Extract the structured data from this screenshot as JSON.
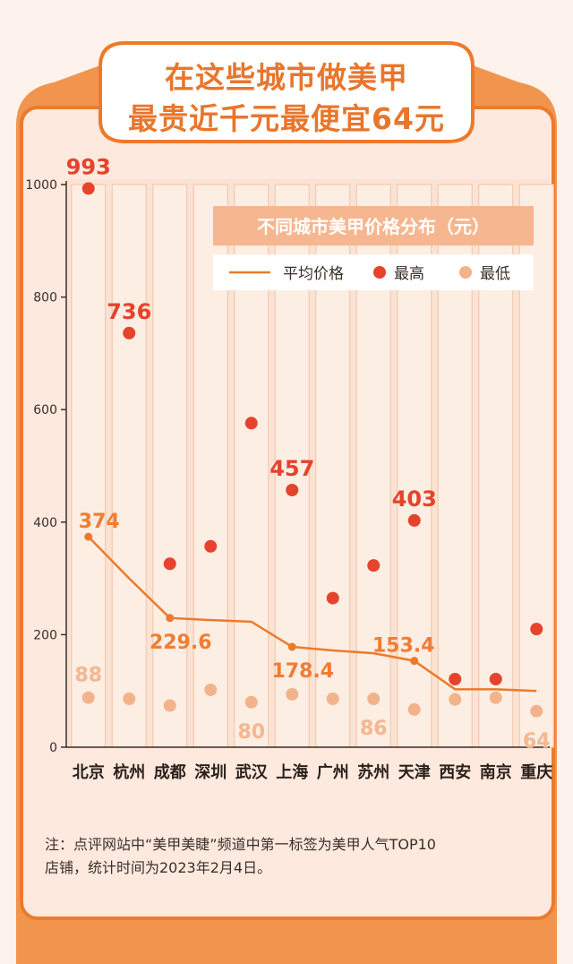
{
  "header": {
    "title_line1": "在这些城市做美甲",
    "title_line2": "最贵近千元最便宜64元"
  },
  "legend": {
    "title": "不同城市美甲价格分布（元）",
    "average": "平均价格",
    "max": "最高",
    "min": "最低"
  },
  "note": {
    "line1": "注：点评网站中“美甲美睫”频道中第一标签为美甲人气TOP10",
    "line2": "店铺，统计时间为2023年2月4日。"
  },
  "colors": {
    "accent": "#ec7a2b",
    "max_dot": "#e5432c",
    "min_dot": "#f2b38b",
    "panel_bg": "#fbe3d4",
    "column_bg": "#fdeee4",
    "label_orange": "#ef7d34",
    "label_light": "#f3b893"
  },
  "chart_data": {
    "type": "scatter",
    "title": "不同城市美甲价格分布（元）",
    "categories": [
      "北京",
      "杭州",
      "成都",
      "深圳",
      "武汉",
      "上海",
      "广州",
      "苏州",
      "天津",
      "西安",
      "南京",
      "重庆"
    ],
    "ylim": [
      0,
      1000
    ],
    "yticks": [
      0,
      200,
      400,
      600,
      800,
      1000
    ],
    "series": [
      {
        "name": "平均价格",
        "kind": "line",
        "values": [
          374,
          300,
          229.6,
          226,
          223,
          178.4,
          172,
          167,
          153.4,
          103,
          103,
          100
        ]
      },
      {
        "name": "最高",
        "kind": "dot",
        "values": [
          993,
          736,
          326,
          357,
          576,
          457,
          265,
          323,
          403,
          121,
          121,
          210
        ]
      },
      {
        "name": "最低",
        "kind": "dot",
        "values": [
          88,
          86,
          74,
          102,
          80,
          94,
          86,
          86,
          67,
          85,
          88,
          64
        ]
      }
    ],
    "value_labels": [
      {
        "text": "993",
        "series": "最高",
        "index": 0
      },
      {
        "text": "736",
        "series": "最高",
        "index": 1
      },
      {
        "text": "457",
        "series": "最高",
        "index": 5
      },
      {
        "text": "403",
        "series": "最高",
        "index": 8
      },
      {
        "text": "374",
        "series": "平均价格",
        "index": 0
      },
      {
        "text": "229.6",
        "series": "平均价格",
        "index": 2
      },
      {
        "text": "178.4",
        "series": "平均价格",
        "index": 5
      },
      {
        "text": "153.4",
        "series": "平均价格",
        "index": 8
      },
      {
        "text": "88",
        "series": "最低",
        "index": 0
      },
      {
        "text": "80",
        "series": "最低",
        "index": 4
      },
      {
        "text": "86",
        "series": "最低",
        "index": 7
      },
      {
        "text": "64",
        "series": "最低",
        "index": 11
      }
    ]
  }
}
